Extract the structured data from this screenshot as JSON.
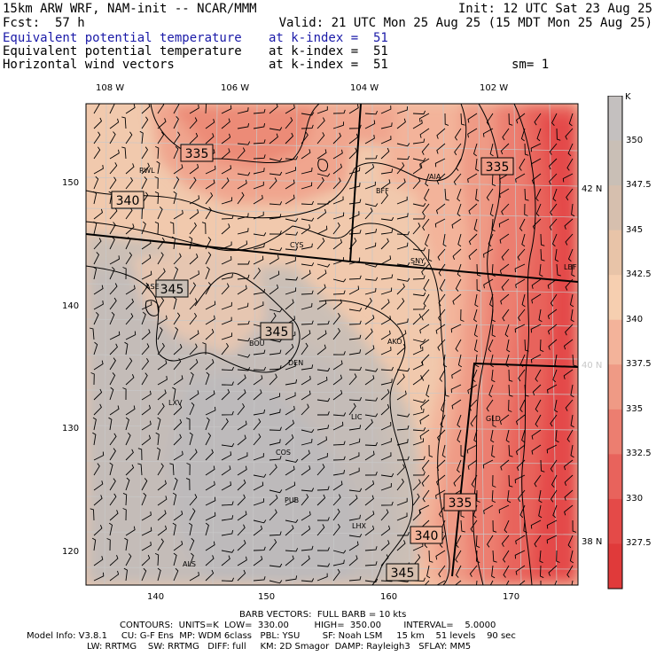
{
  "header": {
    "line1_left": "15km ARW WRF, NAM-init -- NCAR/MMM",
    "line1_right": "Init: 12 UTC Sat 23 Aug 25",
    "fcst_label": "Fcst:",
    "fcst_value": "57 h",
    "valid": "Valid: 21 UTC Mon 25 Aug 25 (15 MDT Mon 25 Aug 25)",
    "fields": [
      {
        "name": "Equivalent potential temperature",
        "level": "at k-index =  51",
        "extra": ""
      },
      {
        "name": "Equivalent potential temperature",
        "level": "at k-index =  51",
        "extra": ""
      },
      {
        "name": "Horizontal wind vectors",
        "level": "at k-index =  51",
        "extra": "sm= 1"
      }
    ]
  },
  "axes": {
    "top_lon": [
      "108 W",
      "106 W",
      "104 W",
      "102 W"
    ],
    "left_y": [
      "150",
      "140",
      "130",
      "120"
    ],
    "bottom_x": [
      "140",
      "150",
      "160",
      "170"
    ],
    "right_lat": [
      {
        "label": "42 N",
        "gray": false
      },
      {
        "label": "40 N",
        "gray": true
      },
      {
        "label": "38 N",
        "gray": false
      }
    ]
  },
  "colorbar": {
    "unit": "K",
    "labels": [
      "350",
      "347.5",
      "345",
      "342.5",
      "340",
      "337.5",
      "335",
      "332.5",
      "330",
      "327.5"
    ],
    "colors": [
      "#c4c0bf",
      "#c9bfb6",
      "#d6bfae",
      "#e8c4a8",
      "#f6cfb0",
      "#f3b39a",
      "#ef9a85",
      "#ec7e70",
      "#e8635c",
      "#e44a48",
      "#e03a3a"
    ]
  },
  "map": {
    "cities": [
      "RWL",
      "BFF",
      "AIA",
      "CYS",
      "SNY",
      "LBF",
      "ASE",
      "BOU",
      "DEN",
      "AKO",
      "LXV",
      "LIC",
      "GLD",
      "COS",
      "PUB",
      "LHX",
      "ALS"
    ],
    "contour_labels": [
      "335",
      "340",
      "345",
      "345",
      "335",
      "335",
      "340",
      "345"
    ]
  },
  "footer": {
    "barb": "BARB VECTORS:  FULL BARB = 10 kts",
    "contours": "CONTOURS:  UNITS=K  LOW=  330.00         HIGH=  350.00        INTERVAL=    5.0000",
    "model1": "Model Info: V3.8.1     CU: G-F Ens  MP: WDM 6class   PBL: YSU        SF: Noah LSM     15 km    51 levels    90 sec",
    "model2": "LW: RRTMG    SW: RRTMG   DIFF: full     KM: 2D Smagor  DAMP: Rayleigh3   SFLAY: MM5"
  }
}
